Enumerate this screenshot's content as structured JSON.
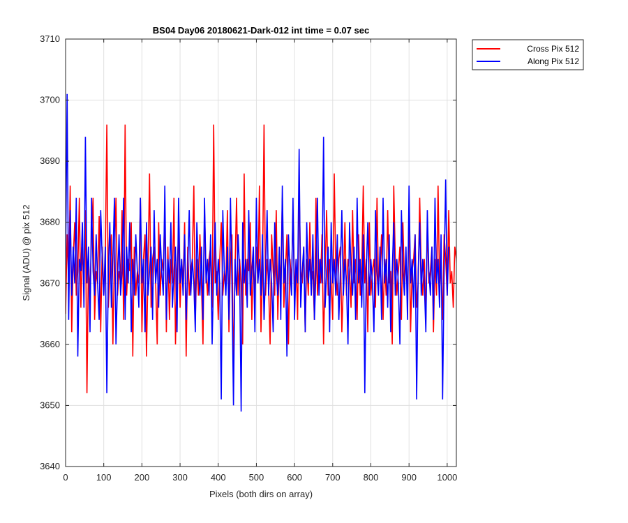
{
  "chart_data": {
    "type": "line",
    "title": "BS04 Day06 20180621-Dark-012 int time = 0.07 sec",
    "xlabel": "Pixels (both dirs on array)",
    "ylabel": "Signal (ADU) @ pix 512",
    "xlim": [
      0,
      1024
    ],
    "ylim": [
      3640,
      3710
    ],
    "xticks": [
      0,
      100,
      200,
      300,
      400,
      500,
      600,
      700,
      800,
      900,
      1000
    ],
    "yticks": [
      3640,
      3650,
      3660,
      3670,
      3680,
      3690,
      3700,
      3710
    ],
    "grid": true,
    "legend_position": "outside top-right",
    "series": [
      {
        "name": "Cross Pix 512",
        "color": "#ff0000",
        "x_step": 4,
        "values": [
          3665,
          3678,
          3670,
          3686,
          3662,
          3674,
          3680,
          3668,
          3672,
          3684,
          3666,
          3676,
          3670,
          3682,
          3652,
          3674,
          3668,
          3678,
          3684,
          3664,
          3672,
          3670,
          3681,
          3662,
          3676,
          3668,
          3674,
          3696,
          3666,
          3672,
          3678,
          3660,
          3674,
          3684,
          3668,
          3672,
          3670,
          3682,
          3664,
          3696,
          3668,
          3674,
          3672,
          3680,
          3658,
          3676,
          3668,
          3672,
          3670,
          3684,
          3662,
          3674,
          3678,
          3658,
          3672,
          3688,
          3666,
          3674,
          3676,
          3670,
          3660,
          3680,
          3668,
          3674,
          3672,
          3682,
          3662,
          3676,
          3664,
          3674,
          3670,
          3684,
          3660,
          3672,
          3678,
          3666,
          3674,
          3670,
          3680,
          3658,
          3676,
          3668,
          3672,
          3674,
          3686,
          3664,
          3674,
          3668,
          3678,
          3670,
          3660,
          3682,
          3672,
          3668,
          3674,
          3676,
          3666,
          3696,
          3670,
          3672,
          3664,
          3674,
          3680,
          3668,
          3672,
          3670,
          3682,
          3662,
          3674,
          3678,
          3656,
          3672,
          3684,
          3668,
          3674,
          3670,
          3660,
          3688,
          3668,
          3674,
          3672,
          3680,
          3664,
          3674,
          3668,
          3676,
          3670,
          3686,
          3662,
          3672,
          3696,
          3668,
          3674,
          3670,
          3660,
          3678,
          3672,
          3668,
          3682,
          3664,
          3674,
          3670,
          3684,
          3666,
          3672,
          3678,
          3660,
          3674,
          3670,
          3682,
          3668,
          3674,
          3664,
          3686,
          3672,
          3670,
          3676,
          3662,
          3674,
          3668,
          3680,
          3670,
          3672,
          3664,
          3684,
          3668,
          3674,
          3670,
          3678,
          3660,
          3672,
          3682,
          3668,
          3674,
          3670,
          3664,
          3688,
          3672,
          3668,
          3674,
          3676,
          3662,
          3670,
          3680,
          3668,
          3674,
          3672,
          3666,
          3682,
          3670,
          3674,
          3664,
          3678,
          3668,
          3672,
          3686,
          3670,
          3674,
          3662,
          3680,
          3668,
          3672,
          3674,
          3666,
          3684,
          3670,
          3672,
          3678,
          3664,
          3674,
          3668,
          3682,
          3670,
          3672,
          3660,
          3686,
          3674,
          3668,
          3672,
          3676,
          3664,
          3680,
          3670,
          3674,
          3668,
          3682,
          3662,
          3672,
          3674,
          3678,
          3666,
          3670,
          3684,
          3672,
          3668,
          3674,
          3664,
          3680,
          3670,
          3672,
          3676,
          3662,
          3674,
          3668,
          3686,
          3670,
          3672,
          3664,
          3678,
          3674,
          3668,
          3682,
          3670,
          3672,
          3666,
          3676,
          3674,
          3668,
          3692,
          3664
        ]
      },
      {
        "name": "Along Pix 512",
        "color": "#0000ff",
        "x_step": 4,
        "values": [
          3673,
          3701,
          3664,
          3682,
          3668,
          3676,
          3670,
          3684,
          3658,
          3674,
          3672,
          3680,
          3666,
          3694,
          3670,
          3676,
          3662,
          3684,
          3672,
          3668,
          3678,
          3670,
          3664,
          3682,
          3674,
          3668,
          3676,
          3652,
          3672,
          3680,
          3666,
          3674,
          3684,
          3660,
          3670,
          3678,
          3668,
          3672,
          3684,
          3664,
          3676,
          3670,
          3680,
          3662,
          3674,
          3668,
          3678,
          3672,
          3666,
          3684,
          3670,
          3674,
          3662,
          3680,
          3668,
          3672,
          3676,
          3664,
          3682,
          3670,
          3674,
          3666,
          3678,
          3672,
          3668,
          3686,
          3664,
          3674,
          3670,
          3680,
          3666,
          3672,
          3676,
          3662,
          3684,
          3670,
          3674,
          3668,
          3678,
          3664,
          3672,
          3682,
          3668,
          3674,
          3670,
          3662,
          3680,
          3672,
          3668,
          3676,
          3664,
          3684,
          3670,
          3674,
          3668,
          3678,
          3660,
          3672,
          3680,
          3668,
          3674,
          3670,
          3651,
          3682,
          3672,
          3668,
          3676,
          3664,
          3684,
          3670,
          3650,
          3674,
          3668,
          3678,
          3672,
          3649,
          3680,
          3670,
          3674,
          3666,
          3682,
          3668,
          3672,
          3676,
          3662,
          3684,
          3670,
          3674,
          3668,
          3678,
          3664,
          3672,
          3682,
          3668,
          3674,
          3670,
          3662,
          3680,
          3672,
          3668,
          3676,
          3664,
          3686,
          3670,
          3674,
          3658,
          3678,
          3672,
          3668,
          3684,
          3664,
          3674,
          3670,
          3692,
          3666,
          3672,
          3676,
          3662,
          3680,
          3670,
          3674,
          3668,
          3678,
          3664,
          3672,
          3684,
          3668,
          3674,
          3670,
          3694,
          3666,
          3672,
          3676,
          3662,
          3680,
          3670,
          3674,
          3668,
          3678,
          3664,
          3672,
          3682,
          3668,
          3674,
          3670,
          3660,
          3680,
          3672,
          3668,
          3676,
          3664,
          3684,
          3670,
          3674,
          3666,
          3678,
          3652,
          3672,
          3680,
          3668,
          3674,
          3670,
          3662,
          3682,
          3672,
          3668,
          3676,
          3664,
          3684,
          3670,
          3674,
          3666,
          3678,
          3662,
          3672,
          3680,
          3668,
          3674,
          3670,
          3660,
          3682,
          3672,
          3668,
          3676,
          3664,
          3686,
          3670,
          3674,
          3666,
          3678,
          3651,
          3672,
          3680,
          3668,
          3674,
          3670,
          3662,
          3682,
          3672,
          3668,
          3676,
          3664,
          3684,
          3670,
          3674,
          3666,
          3678,
          3651,
          3672,
          3687,
          3668,
          3676
        ]
      }
    ]
  }
}
